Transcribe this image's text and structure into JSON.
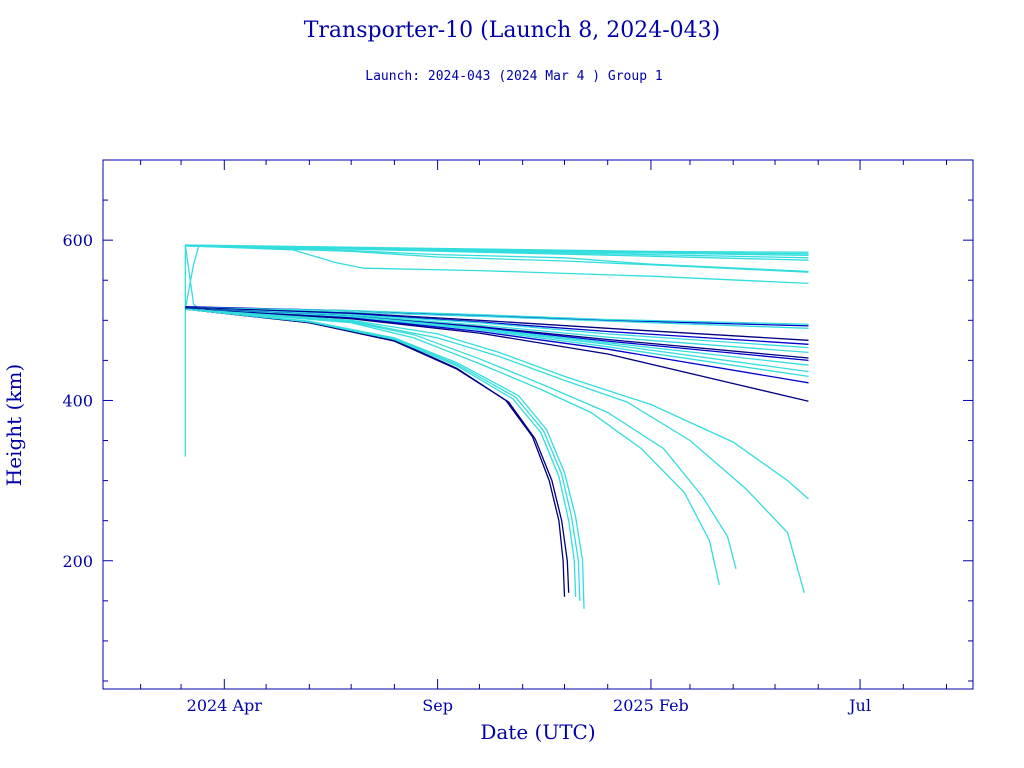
{
  "chart_data": {
    "type": "line",
    "title": "Transporter-10 (Launch 8, 2024-043)",
    "subtitle": "Launch: 2024-043  (2024 Mar  4 )  Group 1",
    "xlabel": "Date (UTC)",
    "ylabel": "Height (km)",
    "x_type": "date",
    "xlim": [
      "2024-01-05",
      "2025-09-20"
    ],
    "ylim": [
      40,
      700
    ],
    "x_major_ticks": [
      {
        "value": "2024-04-01",
        "label": "2024 Apr"
      },
      {
        "value": "2024-09-01",
        "label": "Sep"
      },
      {
        "value": "2025-02-01",
        "label": "2025 Feb"
      },
      {
        "value": "2025-07-01",
        "label": "Jul"
      }
    ],
    "x_minor_ticks": [
      "2024-02-01",
      "2024-03-01",
      "2024-05-01",
      "2024-06-01",
      "2024-07-01",
      "2024-08-01",
      "2024-10-01",
      "2024-11-01",
      "2024-12-01",
      "2025-01-01",
      "2025-03-01",
      "2025-04-01",
      "2025-05-01",
      "2025-06-01",
      "2025-08-01",
      "2025-09-01"
    ],
    "y_major_ticks": [
      200,
      400,
      600
    ],
    "y_minor_ticks": [
      50,
      100,
      150,
      250,
      300,
      350,
      450,
      500,
      550,
      650
    ],
    "grid": false,
    "legend": "none",
    "colors": {
      "axis": "#0000aa",
      "light": "#33dddd",
      "dark": "#000080",
      "medium": "#0000cc"
    },
    "series": [
      {
        "color": "#33dddd",
        "points": [
          [
            "2024-03-04",
            330
          ],
          [
            "2024-03-04",
            594
          ]
        ]
      },
      {
        "color": "#33dddd",
        "points": [
          [
            "2024-03-04",
            594
          ],
          [
            "2024-03-10",
            520
          ],
          [
            "2024-03-14",
            514
          ]
        ]
      },
      {
        "color": "#33dddd",
        "points": [
          [
            "2024-03-04",
            514
          ],
          [
            "2024-03-10",
            570
          ],
          [
            "2024-03-14",
            594
          ]
        ]
      },
      {
        "color": "#33dddd",
        "points": [
          [
            "2024-03-04",
            594
          ],
          [
            "2024-06-01",
            592
          ],
          [
            "2024-10-01",
            589
          ],
          [
            "2025-02-01",
            586
          ],
          [
            "2025-05-25",
            585
          ]
        ]
      },
      {
        "color": "#33dddd",
        "points": [
          [
            "2024-03-04",
            594
          ],
          [
            "2024-06-01",
            591
          ],
          [
            "2024-10-01",
            588
          ],
          [
            "2025-02-01",
            585
          ],
          [
            "2025-05-25",
            583
          ]
        ]
      },
      {
        "color": "#33dddd",
        "points": [
          [
            "2024-03-04",
            593
          ],
          [
            "2024-06-01",
            591
          ],
          [
            "2024-10-01",
            587
          ],
          [
            "2025-02-01",
            584
          ],
          [
            "2025-05-25",
            581
          ]
        ]
      },
      {
        "color": "#33dddd",
        "points": [
          [
            "2024-03-04",
            593
          ],
          [
            "2024-06-01",
            590
          ],
          [
            "2024-10-01",
            586
          ],
          [
            "2025-02-01",
            582
          ],
          [
            "2025-05-25",
            578
          ]
        ]
      },
      {
        "color": "#33dddd",
        "points": [
          [
            "2024-03-04",
            593
          ],
          [
            "2024-06-01",
            590
          ],
          [
            "2024-10-01",
            585
          ],
          [
            "2025-02-01",
            580
          ],
          [
            "2025-05-25",
            575
          ]
        ]
      },
      {
        "color": "#33dddd",
        "points": [
          [
            "2024-03-04",
            593
          ],
          [
            "2024-07-01",
            587
          ],
          [
            "2024-09-01",
            582
          ],
          [
            "2024-12-01",
            578
          ],
          [
            "2025-02-01",
            570
          ],
          [
            "2025-05-25",
            561
          ]
        ]
      },
      {
        "color": "#33dddd",
        "points": [
          [
            "2024-03-04",
            593
          ],
          [
            "2024-07-01",
            586
          ],
          [
            "2024-09-01",
            579
          ],
          [
            "2024-12-01",
            574
          ],
          [
            "2025-03-01",
            567
          ],
          [
            "2025-05-25",
            560
          ]
        ]
      },
      {
        "color": "#33dddd",
        "points": [
          [
            "2024-03-04",
            593
          ],
          [
            "2024-05-20",
            588
          ],
          [
            "2024-06-20",
            572
          ],
          [
            "2024-07-10",
            565
          ],
          [
            "2024-10-01",
            562
          ],
          [
            "2025-02-01",
            555
          ],
          [
            "2025-05-25",
            546
          ]
        ]
      },
      {
        "color": "#0000cc",
        "points": [
          [
            "2024-03-04",
            517
          ],
          [
            "2024-07-01",
            512
          ],
          [
            "2024-10-01",
            506
          ],
          [
            "2025-01-01",
            500
          ],
          [
            "2025-05-25",
            493
          ]
        ]
      },
      {
        "color": "#33dddd",
        "points": [
          [
            "2024-03-04",
            516
          ],
          [
            "2024-07-01",
            512
          ],
          [
            "2024-10-01",
            507
          ],
          [
            "2025-01-01",
            501
          ],
          [
            "2025-05-25",
            495
          ]
        ]
      },
      {
        "color": "#33dddd",
        "points": [
          [
            "2024-03-04",
            515
          ],
          [
            "2024-07-01",
            510
          ],
          [
            "2024-10-01",
            505
          ],
          [
            "2025-01-01",
            499
          ],
          [
            "2025-05-25",
            490
          ]
        ]
      },
      {
        "color": "#000080",
        "points": [
          [
            "2024-03-04",
            516
          ],
          [
            "2024-07-01",
            509
          ],
          [
            "2024-10-01",
            500
          ],
          [
            "2025-01-01",
            490
          ],
          [
            "2025-05-25",
            475
          ]
        ]
      },
      {
        "color": "#0000cc",
        "points": [
          [
            "2024-03-04",
            515
          ],
          [
            "2024-07-01",
            508
          ],
          [
            "2024-10-01",
            498
          ],
          [
            "2025-01-01",
            486
          ],
          [
            "2025-05-25",
            470
          ]
        ]
      },
      {
        "color": "#33dddd",
        "points": [
          [
            "2024-03-04",
            515
          ],
          [
            "2024-07-01",
            507
          ],
          [
            "2024-10-01",
            497
          ],
          [
            "2025-01-01",
            483
          ],
          [
            "2025-05-25",
            466
          ]
        ]
      },
      {
        "color": "#33dddd",
        "points": [
          [
            "2024-03-04",
            514
          ],
          [
            "2024-07-01",
            506
          ],
          [
            "2024-10-01",
            494
          ],
          [
            "2025-01-01",
            479
          ],
          [
            "2025-05-25",
            460
          ]
        ]
      },
      {
        "color": "#000080",
        "points": [
          [
            "2024-03-04",
            515
          ],
          [
            "2024-07-01",
            505
          ],
          [
            "2024-10-01",
            492
          ],
          [
            "2025-01-01",
            476
          ],
          [
            "2025-05-25",
            453
          ]
        ]
      },
      {
        "color": "#0000cc",
        "points": [
          [
            "2024-03-04",
            514
          ],
          [
            "2024-07-01",
            505
          ],
          [
            "2024-10-01",
            491
          ],
          [
            "2025-01-01",
            474
          ],
          [
            "2025-05-25",
            450
          ]
        ]
      },
      {
        "color": "#33dddd",
        "points": [
          [
            "2024-03-04",
            514
          ],
          [
            "2024-07-01",
            505
          ],
          [
            "2024-10-01",
            490
          ],
          [
            "2025-01-01",
            472
          ],
          [
            "2025-05-25",
            444
          ]
        ]
      },
      {
        "color": "#33dddd",
        "points": [
          [
            "2024-03-04",
            514
          ],
          [
            "2024-07-01",
            504
          ],
          [
            "2024-10-01",
            489
          ],
          [
            "2025-01-01",
            470
          ],
          [
            "2025-05-25",
            436
          ]
        ]
      },
      {
        "color": "#33dddd",
        "points": [
          [
            "2024-03-04",
            514
          ],
          [
            "2024-07-01",
            504
          ],
          [
            "2024-10-01",
            488
          ],
          [
            "2025-01-01",
            467
          ],
          [
            "2025-05-25",
            430
          ]
        ]
      },
      {
        "color": "#0000cc",
        "points": [
          [
            "2024-03-04",
            514
          ],
          [
            "2024-07-01",
            503
          ],
          [
            "2024-10-01",
            486
          ],
          [
            "2025-01-01",
            464
          ],
          [
            "2025-05-25",
            422
          ]
        ]
      },
      {
        "color": "#000080",
        "points": [
          [
            "2024-03-04",
            514
          ],
          [
            "2024-07-01",
            502
          ],
          [
            "2024-10-01",
            484
          ],
          [
            "2025-01-01",
            458
          ],
          [
            "2025-05-25",
            399
          ]
        ]
      },
      {
        "color": "#33dddd",
        "points": [
          [
            "2024-03-04",
            514
          ],
          [
            "2024-07-01",
            500
          ],
          [
            "2024-09-01",
            483
          ],
          [
            "2024-10-15",
            460
          ],
          [
            "2024-12-01",
            430
          ],
          [
            "2025-02-01",
            395
          ],
          [
            "2025-04-01",
            348
          ],
          [
            "2025-05-10",
            300
          ],
          [
            "2025-05-25",
            277
          ]
        ]
      },
      {
        "color": "#33dddd",
        "points": [
          [
            "2024-03-04",
            514
          ],
          [
            "2024-07-01",
            499
          ],
          [
            "2024-09-01",
            478
          ],
          [
            "2024-10-15",
            455
          ],
          [
            "2024-12-01",
            425
          ],
          [
            "2025-01-15",
            398
          ],
          [
            "2025-03-01",
            350
          ],
          [
            "2025-04-10",
            290
          ],
          [
            "2025-05-10",
            235
          ],
          [
            "2025-05-22",
            160
          ]
        ]
      },
      {
        "color": "#33dddd",
        "points": [
          [
            "2024-03-04",
            514
          ],
          [
            "2024-07-01",
            498
          ],
          [
            "2024-08-15",
            482
          ],
          [
            "2024-10-01",
            452
          ],
          [
            "2024-11-15",
            420
          ],
          [
            "2025-01-01",
            385
          ],
          [
            "2025-02-10",
            340
          ],
          [
            "2025-03-10",
            280
          ],
          [
            "2025-03-28",
            230
          ],
          [
            "2025-04-03",
            190
          ]
        ]
      },
      {
        "color": "#33dddd",
        "points": [
          [
            "2024-03-04",
            514
          ],
          [
            "2024-07-01",
            497
          ],
          [
            "2024-08-15",
            478
          ],
          [
            "2024-10-01",
            446
          ],
          [
            "2024-11-15",
            413
          ],
          [
            "2024-12-20",
            385
          ],
          [
            "2025-01-25",
            340
          ],
          [
            "2025-02-25",
            285
          ],
          [
            "2025-03-15",
            225
          ],
          [
            "2025-03-22",
            170
          ]
        ]
      },
      {
        "color": "#000080",
        "points": [
          [
            "2024-03-04",
            514
          ],
          [
            "2024-06-01",
            497
          ],
          [
            "2024-08-01",
            475
          ],
          [
            "2024-09-15",
            440
          ],
          [
            "2024-10-20",
            400
          ],
          [
            "2024-11-08",
            355
          ],
          [
            "2024-11-20",
            300
          ],
          [
            "2024-11-27",
            250
          ],
          [
            "2024-11-30",
            200
          ],
          [
            "2024-12-01",
            155
          ]
        ]
      },
      {
        "color": "#000080",
        "points": [
          [
            "2024-03-04",
            514
          ],
          [
            "2024-06-01",
            497
          ],
          [
            "2024-08-01",
            474
          ],
          [
            "2024-09-15",
            439
          ],
          [
            "2024-10-22",
            398
          ],
          [
            "2024-11-10",
            352
          ],
          [
            "2024-11-22",
            300
          ],
          [
            "2024-11-29",
            250
          ],
          [
            "2024-12-03",
            200
          ],
          [
            "2024-12-04",
            160
          ]
        ]
      },
      {
        "color": "#33dddd",
        "points": [
          [
            "2024-03-04",
            514
          ],
          [
            "2024-06-01",
            498
          ],
          [
            "2024-08-01",
            476
          ],
          [
            "2024-09-15",
            443
          ],
          [
            "2024-10-25",
            402
          ],
          [
            "2024-11-14",
            360
          ],
          [
            "2024-11-27",
            305
          ],
          [
            "2024-12-04",
            250
          ],
          [
            "2024-12-08",
            200
          ],
          [
            "2024-12-09",
            155
          ]
        ]
      },
      {
        "color": "#33dddd",
        "points": [
          [
            "2024-03-04",
            514
          ],
          [
            "2024-06-01",
            498
          ],
          [
            "2024-08-01",
            477
          ],
          [
            "2024-09-15",
            445
          ],
          [
            "2024-10-27",
            404
          ],
          [
            "2024-11-16",
            362
          ],
          [
            "2024-11-29",
            308
          ],
          [
            "2024-12-06",
            255
          ],
          [
            "2024-12-11",
            200
          ],
          [
            "2024-12-12",
            150
          ]
        ]
      },
      {
        "color": "#33dddd",
        "points": [
          [
            "2024-03-04",
            514
          ],
          [
            "2024-06-01",
            499
          ],
          [
            "2024-08-01",
            478
          ],
          [
            "2024-09-15",
            447
          ],
          [
            "2024-10-29",
            406
          ],
          [
            "2024-11-18",
            364
          ],
          [
            "2024-12-01",
            310
          ],
          [
            "2024-12-09",
            255
          ],
          [
            "2024-12-14",
            200
          ],
          [
            "2024-12-15",
            140
          ]
        ]
      }
    ]
  }
}
